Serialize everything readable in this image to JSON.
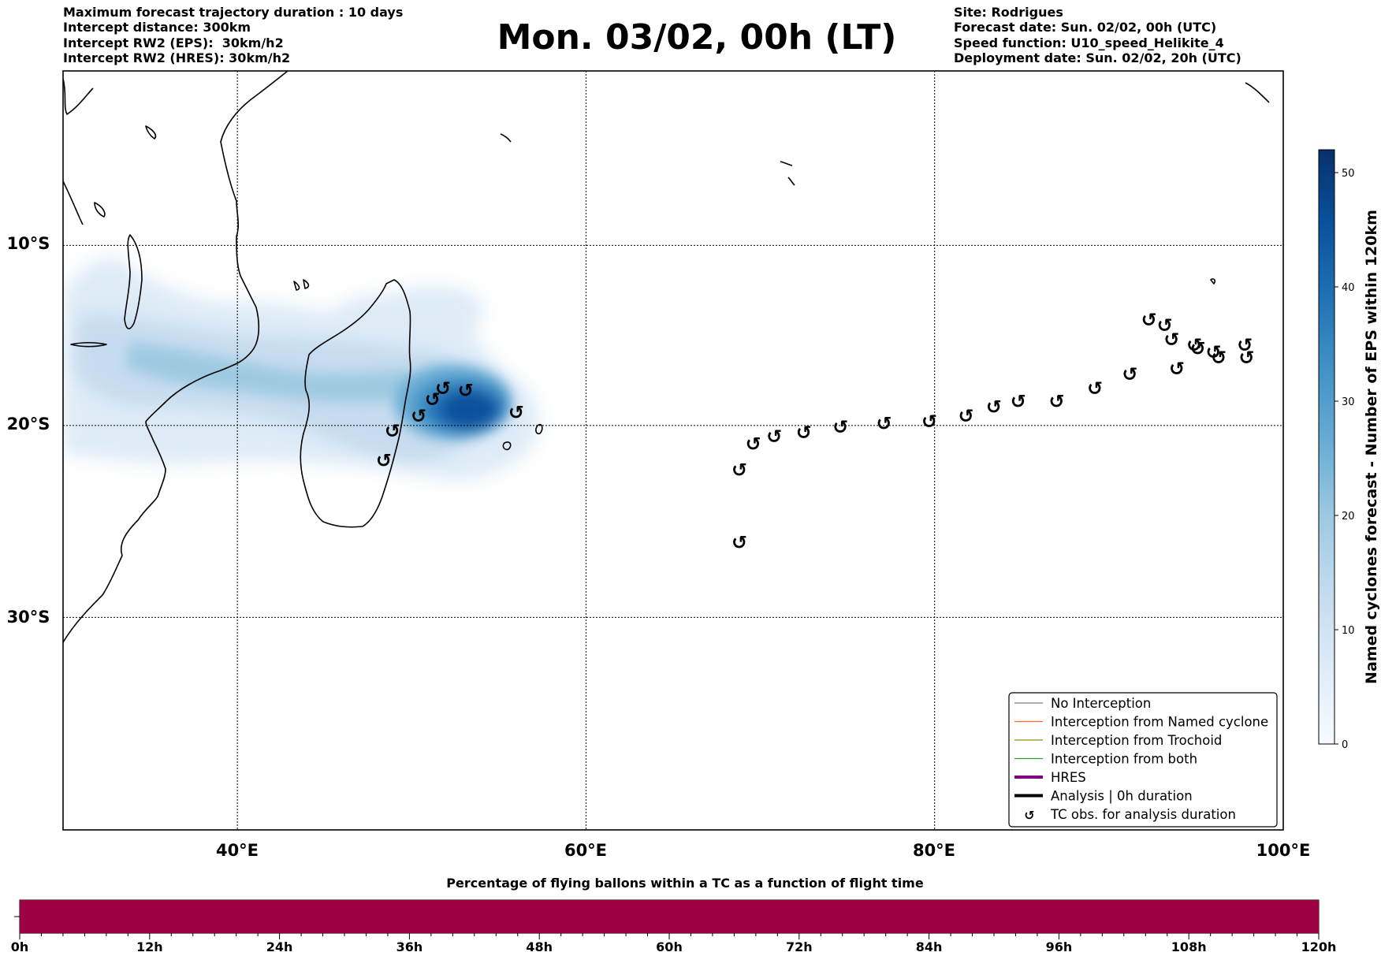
{
  "header": {
    "left": [
      "Maximum forecast trajectory duration : 10 days",
      "Intercept distance: 300km",
      "Intercept RW2 (EPS):  30km/h2",
      "Intercept RW2 (HRES): 30km/h2"
    ],
    "right": [
      "Site: Rodrigues",
      "Forecast date: Sun. 02/02, 00h (UTC)",
      "Speed function: U10_speed_Helikite_4",
      "Deployment date: Sun. 02/02, 20h (UTC)"
    ],
    "title": "Mon. 03/02, 00h (LT)"
  },
  "map": {
    "projection": "Mercator",
    "lat_labels": [
      "10°S",
      "20°S",
      "30°S"
    ],
    "lon_labels": [
      "40°E",
      "60°E",
      "80°E",
      "100°E"
    ],
    "extent": {
      "lon": [
        30,
        100
      ],
      "lat": [
        -40,
        0
      ]
    },
    "gridlines": "dotted"
  },
  "colorbar": {
    "label": "Named cyclones forecast - Number of EPS within 120km",
    "ticks": [
      "0",
      "10",
      "20",
      "30",
      "40",
      "50"
    ],
    "range": [
      0,
      52
    ],
    "colormap": [
      "#f7fbff",
      "#deebf7",
      "#c6dbef",
      "#9ecae1",
      "#6baed6",
      "#4292c6",
      "#2171b5",
      "#08519c",
      "#08306b"
    ]
  },
  "legend": {
    "items": [
      {
        "label": "No Interception",
        "color": "#808080",
        "kind": "thin-line"
      },
      {
        "label": "Interception from Named cyclone",
        "color": "#ff6a2a",
        "kind": "thin-line"
      },
      {
        "label": "Interception from Trochoid",
        "color": "#9a8a10",
        "kind": "thin-line"
      },
      {
        "label": "Interception from both",
        "color": "#2ca02c",
        "kind": "thin-line"
      },
      {
        "label": "HRES",
        "color": "#800080",
        "kind": "thick-line"
      },
      {
        "label": "Analysis | 0h duration",
        "color": "#000000",
        "kind": "thick-line"
      },
      {
        "label": "TC obs. for analysis duration",
        "color": "#000000",
        "kind": "symbol",
        "symbol": "↺"
      }
    ]
  },
  "timeline": {
    "title": "Percentage of flying ballons within a TC as a function of flight time",
    "ticks": [
      "0h",
      "12h",
      "24h",
      "36h",
      "48h",
      "60h",
      "72h",
      "84h",
      "96h",
      "108h",
      "120h"
    ],
    "fill_fraction": 1.0,
    "fill_color": "#9e0142"
  },
  "cyclone_obs": {
    "symbol": "↺",
    "points": [
      [
        48.4,
        -21.9
      ],
      [
        48.9,
        -20.3
      ],
      [
        50.4,
        -19.5
      ],
      [
        51.2,
        -18.6
      ],
      [
        51.8,
        -18.0
      ],
      [
        53.1,
        -18.1
      ],
      [
        56.0,
        -19.3
      ],
      [
        68.8,
        -26.2
      ],
      [
        68.8,
        -22.4
      ],
      [
        69.6,
        -21.0
      ],
      [
        70.8,
        -20.6
      ],
      [
        72.5,
        -20.4
      ],
      [
        74.6,
        -20.1
      ],
      [
        77.1,
        -19.9
      ],
      [
        79.7,
        -19.8
      ],
      [
        81.8,
        -19.5
      ],
      [
        83.4,
        -19.0
      ],
      [
        84.8,
        -18.7
      ],
      [
        87.0,
        -18.7
      ],
      [
        89.2,
        -18.0
      ],
      [
        91.2,
        -17.2
      ],
      [
        92.3,
        -14.2
      ],
      [
        93.2,
        -14.5
      ],
      [
        93.6,
        -15.3
      ],
      [
        93.9,
        -16.9
      ],
      [
        94.9,
        -15.6
      ],
      [
        95.1,
        -15.8
      ],
      [
        96.0,
        -16.0
      ],
      [
        96.3,
        -16.3
      ],
      [
        97.8,
        -15.6
      ],
      [
        97.9,
        -16.3
      ]
    ]
  }
}
